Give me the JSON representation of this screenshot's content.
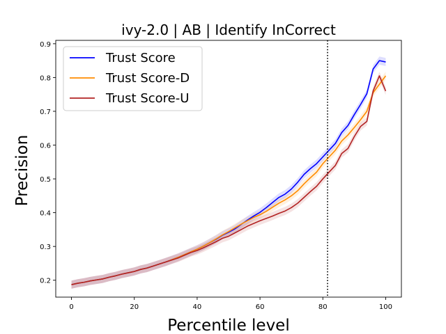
{
  "chart_data": {
    "type": "line",
    "title": "ivy-2.0 | AB | Identify InCorrect",
    "xlabel": "Percentile level",
    "ylabel": "Precision",
    "xlim": [
      -5,
      105
    ],
    "ylim": [
      0.15,
      0.91
    ],
    "xticks": [
      0,
      20,
      40,
      60,
      80,
      100
    ],
    "yticks": [
      0.2,
      0.3,
      0.4,
      0.5,
      0.6,
      0.7,
      0.8,
      0.9
    ],
    "xtick_labels": [
      "0",
      "20",
      "40",
      "60",
      "80",
      "100"
    ],
    "ytick_labels": [
      "0.2",
      "0.3",
      "0.4",
      "0.5",
      "0.6",
      "0.7",
      "0.8",
      "0.9"
    ],
    "grid": false,
    "legend_position": "upper-left",
    "vline": {
      "x": 81.5,
      "style": "dotted",
      "color": "#000000"
    },
    "x": [
      0,
      2,
      4,
      6,
      8,
      10,
      12,
      14,
      16,
      18,
      20,
      22,
      24,
      26,
      28,
      30,
      32,
      34,
      36,
      38,
      40,
      42,
      44,
      46,
      48,
      50,
      52,
      54,
      56,
      58,
      60,
      62,
      64,
      66,
      68,
      70,
      72,
      74,
      76,
      78,
      80,
      82,
      84,
      86,
      88,
      90,
      92,
      94,
      96,
      98,
      100
    ],
    "series": [
      {
        "name": "Trust Score",
        "color": "#0000ff",
        "values": [
          0.187,
          0.191,
          0.194,
          0.198,
          0.201,
          0.204,
          0.209,
          0.213,
          0.218,
          0.222,
          0.226,
          0.232,
          0.236,
          0.242,
          0.248,
          0.254,
          0.261,
          0.268,
          0.276,
          0.284,
          0.292,
          0.301,
          0.311,
          0.321,
          0.333,
          0.342,
          0.352,
          0.365,
          0.378,
          0.39,
          0.401,
          0.415,
          0.43,
          0.445,
          0.455,
          0.47,
          0.49,
          0.513,
          0.53,
          0.545,
          0.565,
          0.585,
          0.605,
          0.637,
          0.658,
          0.69,
          0.72,
          0.752,
          0.825,
          0.85,
          0.846
        ],
        "band": 0.012
      },
      {
        "name": "Trust Score-D",
        "color": "#ff8c00",
        "values": [
          0.187,
          0.191,
          0.194,
          0.198,
          0.201,
          0.204,
          0.209,
          0.213,
          0.218,
          0.222,
          0.226,
          0.232,
          0.236,
          0.242,
          0.248,
          0.254,
          0.261,
          0.268,
          0.276,
          0.284,
          0.292,
          0.301,
          0.311,
          0.322,
          0.334,
          0.344,
          0.355,
          0.366,
          0.376,
          0.386,
          0.394,
          0.404,
          0.416,
          0.428,
          0.438,
          0.45,
          0.465,
          0.485,
          0.503,
          0.52,
          0.545,
          0.565,
          0.585,
          0.612,
          0.63,
          0.652,
          0.675,
          0.7,
          0.755,
          0.78,
          0.805
        ],
        "band": 0.012
      },
      {
        "name": "Trust Score-U",
        "color": "#b22222",
        "values": [
          0.187,
          0.191,
          0.194,
          0.198,
          0.201,
          0.204,
          0.209,
          0.213,
          0.218,
          0.222,
          0.226,
          0.232,
          0.236,
          0.242,
          0.248,
          0.254,
          0.26,
          0.266,
          0.274,
          0.282,
          0.288,
          0.296,
          0.305,
          0.314,
          0.324,
          0.33,
          0.34,
          0.35,
          0.36,
          0.368,
          0.376,
          0.383,
          0.39,
          0.398,
          0.405,
          0.415,
          0.428,
          0.445,
          0.462,
          0.478,
          0.5,
          0.52,
          0.54,
          0.575,
          0.59,
          0.625,
          0.655,
          0.67,
          0.76,
          0.805,
          0.76
        ],
        "band": 0.012
      }
    ]
  }
}
